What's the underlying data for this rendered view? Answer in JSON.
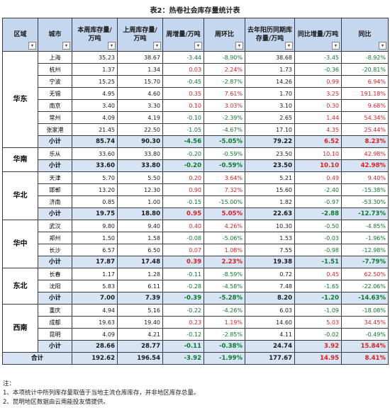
{
  "title": "表2：热卷社会库存量统计表",
  "headers": [
    "区域",
    "城市",
    "本周库存量/万吨",
    "上周库存量/万吨",
    "周增量/万吨",
    "周环比",
    "去年阳历同期库存量/万吨",
    "同比增量/万吨",
    "同比"
  ],
  "dropdown_icon": "▾",
  "colors": {
    "header_bg": "#c5d7ee",
    "subtotal_bg": "#d6e4f3",
    "up": "#e02020",
    "down": "#0b7a2c"
  },
  "groups": [
    {
      "region": "华东",
      "rows": [
        {
          "city": "上海",
          "cur": "35.23",
          "prev": "38.67",
          "wd": "-3.44",
          "wp": "-8.90%",
          "ly": "38.68",
          "yd": "-3.45",
          "yp": "-8.92%"
        },
        {
          "city": "杭州",
          "cur": "1.37",
          "prev": "1.34",
          "wd": "0.03",
          "wp": "2.24%",
          "ly": "1.73",
          "yd": "-0.36",
          "yp": "-20.81%"
        },
        {
          "city": "宁波",
          "cur": "15.25",
          "prev": "15.70",
          "wd": "-0.45",
          "wp": "-2.87%",
          "ly": "14.26",
          "yd": "0.99",
          "yp": "6.94%"
        },
        {
          "city": "无锡",
          "cur": "4.95",
          "prev": "4.60",
          "wd": "0.35",
          "wp": "7.61%",
          "ly": "1.70",
          "yd": "3.25",
          "yp": "191.18%"
        },
        {
          "city": "南京",
          "cur": "3.40",
          "prev": "3.30",
          "wd": "0.10",
          "wp": "3.03%",
          "ly": "3.10",
          "yd": "0.30",
          "yp": "9.68%"
        },
        {
          "city": "常州",
          "cur": "4.09",
          "prev": "4.19",
          "wd": "-0.10",
          "wp": "-2.39%",
          "ly": "2.65",
          "yd": "1.44",
          "yp": "54.34%"
        },
        {
          "city": "张家港",
          "cur": "21.45",
          "prev": "22.50",
          "wd": "-1.05",
          "wp": "-4.67%",
          "ly": "17.10",
          "yd": "4.35",
          "yp": "25.44%"
        }
      ],
      "subtotal": {
        "label": "小计",
        "cur": "85.74",
        "prev": "90.30",
        "wd": "-4.56",
        "wp": "-5.05%",
        "ly": "79.22",
        "yd": "6.52",
        "yp": "8.23%"
      }
    },
    {
      "region": "华南",
      "rows": [
        {
          "city": "乐从",
          "cur": "33.60",
          "prev": "33.80",
          "wd": "-0.20",
          "wp": "-0.59%",
          "ly": "23.50",
          "yd": "10.10",
          "yp": "42.98%"
        }
      ],
      "subtotal": {
        "label": "小计",
        "cur": "33.60",
        "prev": "33.80",
        "wd": "-0.20",
        "wp": "-0.59%",
        "ly": "23.50",
        "yd": "10.10",
        "yp": "42.98%"
      }
    },
    {
      "region": "华北",
      "rows": [
        {
          "city": "天津",
          "cur": "5.70",
          "prev": "5.50",
          "wd": "0.20",
          "wp": "3.64%",
          "ly": "5.21",
          "yd": "0.49",
          "yp": "9.40%"
        },
        {
          "city": "邯郸",
          "cur": "13.20",
          "prev": "12.30",
          "wd": "0.90",
          "wp": "7.32%",
          "ly": "15.60",
          "yd": "-2.40",
          "yp": "-15.38%"
        },
        {
          "city": "济南",
          "cur": "0.85",
          "prev": "1.00",
          "wd": "-0.15",
          "wp": "-15.00%",
          "ly": "1.82",
          "yd": "-0.97",
          "yp": "-53.30%"
        }
      ],
      "subtotal": {
        "label": "小计",
        "cur": "19.75",
        "prev": "18.80",
        "wd": "0.95",
        "wp": "5.05%",
        "ly": "22.63",
        "yd": "-2.88",
        "yp": "-12.73%"
      }
    },
    {
      "region": "华中",
      "rows": [
        {
          "city": "武汉",
          "cur": "9.80",
          "prev": "9.40",
          "wd": "0.40",
          "wp": "4.26%",
          "ly": "10.30",
          "yd": "-0.50",
          "yp": "-4.85%"
        },
        {
          "city": "郑州",
          "cur": "1.50",
          "prev": "1.58",
          "wd": "-0.08",
          "wp": "-5.06%",
          "ly": "1.53",
          "yd": "-0.03",
          "yp": "-1.96%"
        },
        {
          "city": "长沙",
          "cur": "6.57",
          "prev": "6.50",
          "wd": "0.07",
          "wp": "1.08%",
          "ly": "7.55",
          "yd": "-0.98",
          "yp": "-12.98%"
        }
      ],
      "subtotal": {
        "label": "小计",
        "cur": "17.87",
        "prev": "17.48",
        "wd": "0.39",
        "wp": "2.23%",
        "ly": "19.38",
        "yd": "-1.51",
        "yp": "-7.79%"
      }
    },
    {
      "region": "东北",
      "rows": [
        {
          "city": "长春",
          "cur": "1.17",
          "prev": "1.28",
          "wd": "-0.11",
          "wp": "-8.59%",
          "ly": "0.72",
          "yd": "0.45",
          "yp": "62.50%"
        },
        {
          "city": "沈阳",
          "cur": "5.83",
          "prev": "6.11",
          "wd": "-0.28",
          "wp": "-4.58%",
          "ly": "7.48",
          "yd": "-1.65",
          "yp": "-22.06%"
        }
      ],
      "subtotal": {
        "label": "小计",
        "cur": "7.00",
        "prev": "7.39",
        "wd": "-0.39",
        "wp": "-5.28%",
        "ly": "8.20",
        "yd": "-1.20",
        "yp": "-14.63%"
      }
    },
    {
      "region": "西南",
      "rows": [
        {
          "city": "重庆",
          "cur": "4.94",
          "prev": "5.16",
          "wd": "-0.22",
          "wp": "-4.26%",
          "ly": "6.03",
          "yd": "-1.09",
          "yp": "-18.08%"
        },
        {
          "city": "成都",
          "cur": "19.63",
          "prev": "19.40",
          "wd": "0.23",
          "wp": "1.19%",
          "ly": "14.60",
          "yd": "5.03",
          "yp": "34.45%"
        },
        {
          "city": "昆明",
          "cur": "4.09",
          "prev": "4.21",
          "wd": "-0.12",
          "wp": "-2.85%",
          "ly": "4.11",
          "yd": "-0.02",
          "yp": "-0.49%"
        }
      ],
      "subtotal": {
        "label": "小计",
        "cur": "28.66",
        "prev": "28.77",
        "wd": "-0.11",
        "wp": "-0.38%",
        "ly": "24.74",
        "yd": "3.92",
        "yp": "15.84%"
      }
    }
  ],
  "total": {
    "label": "合计",
    "cur": "192.62",
    "prev": "196.54",
    "wd": "-3.92",
    "wp": "-1.99%",
    "ly": "177.67",
    "yd": "14.95",
    "yp": "8.41%"
  },
  "notes": [
    "注：",
    "1、本项统计中所列库存量取值于当地主流仓库库存，并非地区库存总量。",
    "2、昆明地区数据由云南能投友情提供。"
  ]
}
